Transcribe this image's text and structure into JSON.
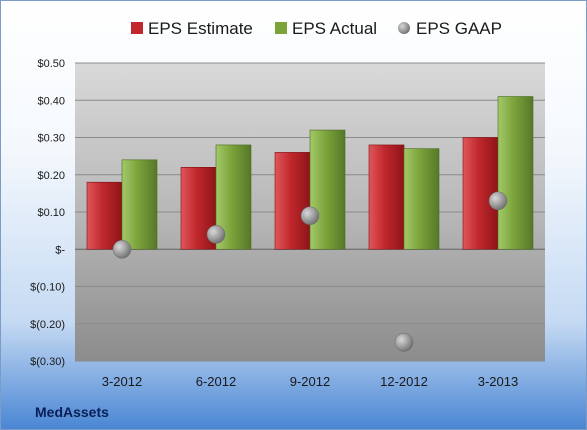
{
  "chart_data": {
    "type": "bar",
    "categories": [
      "3-2012",
      "6-2012",
      "9-2012",
      "12-2012",
      "3-2013"
    ],
    "series": [
      {
        "name": "EPS Estimate",
        "kind": "bar",
        "color": "#c0282d",
        "values": [
          0.18,
          0.22,
          0.26,
          0.28,
          0.3
        ]
      },
      {
        "name": "EPS Actual",
        "kind": "bar",
        "color": "#7ba33a",
        "values": [
          0.24,
          0.28,
          0.32,
          0.27,
          0.41
        ]
      },
      {
        "name": "EPS GAAP",
        "kind": "marker",
        "color": "#9a9a9a",
        "values": [
          0.0,
          0.04,
          0.09,
          -0.25,
          0.13
        ]
      }
    ],
    "yticks": [
      {
        "value": 0.5,
        "label": "$0.50"
      },
      {
        "value": 0.4,
        "label": "$0.40"
      },
      {
        "value": 0.3,
        "label": "$0.30"
      },
      {
        "value": 0.2,
        "label": "$0.20"
      },
      {
        "value": 0.1,
        "label": "$0.10"
      },
      {
        "value": 0.0,
        "label": "$-"
      },
      {
        "value": -0.1,
        "label": "$(0.10)"
      },
      {
        "value": -0.2,
        "label": "$(0.20)"
      },
      {
        "value": -0.3,
        "label": "$(0.30)"
      }
    ],
    "ylim": [
      -0.3,
      0.5
    ],
    "grid": true,
    "legend_position": "top-center"
  },
  "company": "MedAssets"
}
